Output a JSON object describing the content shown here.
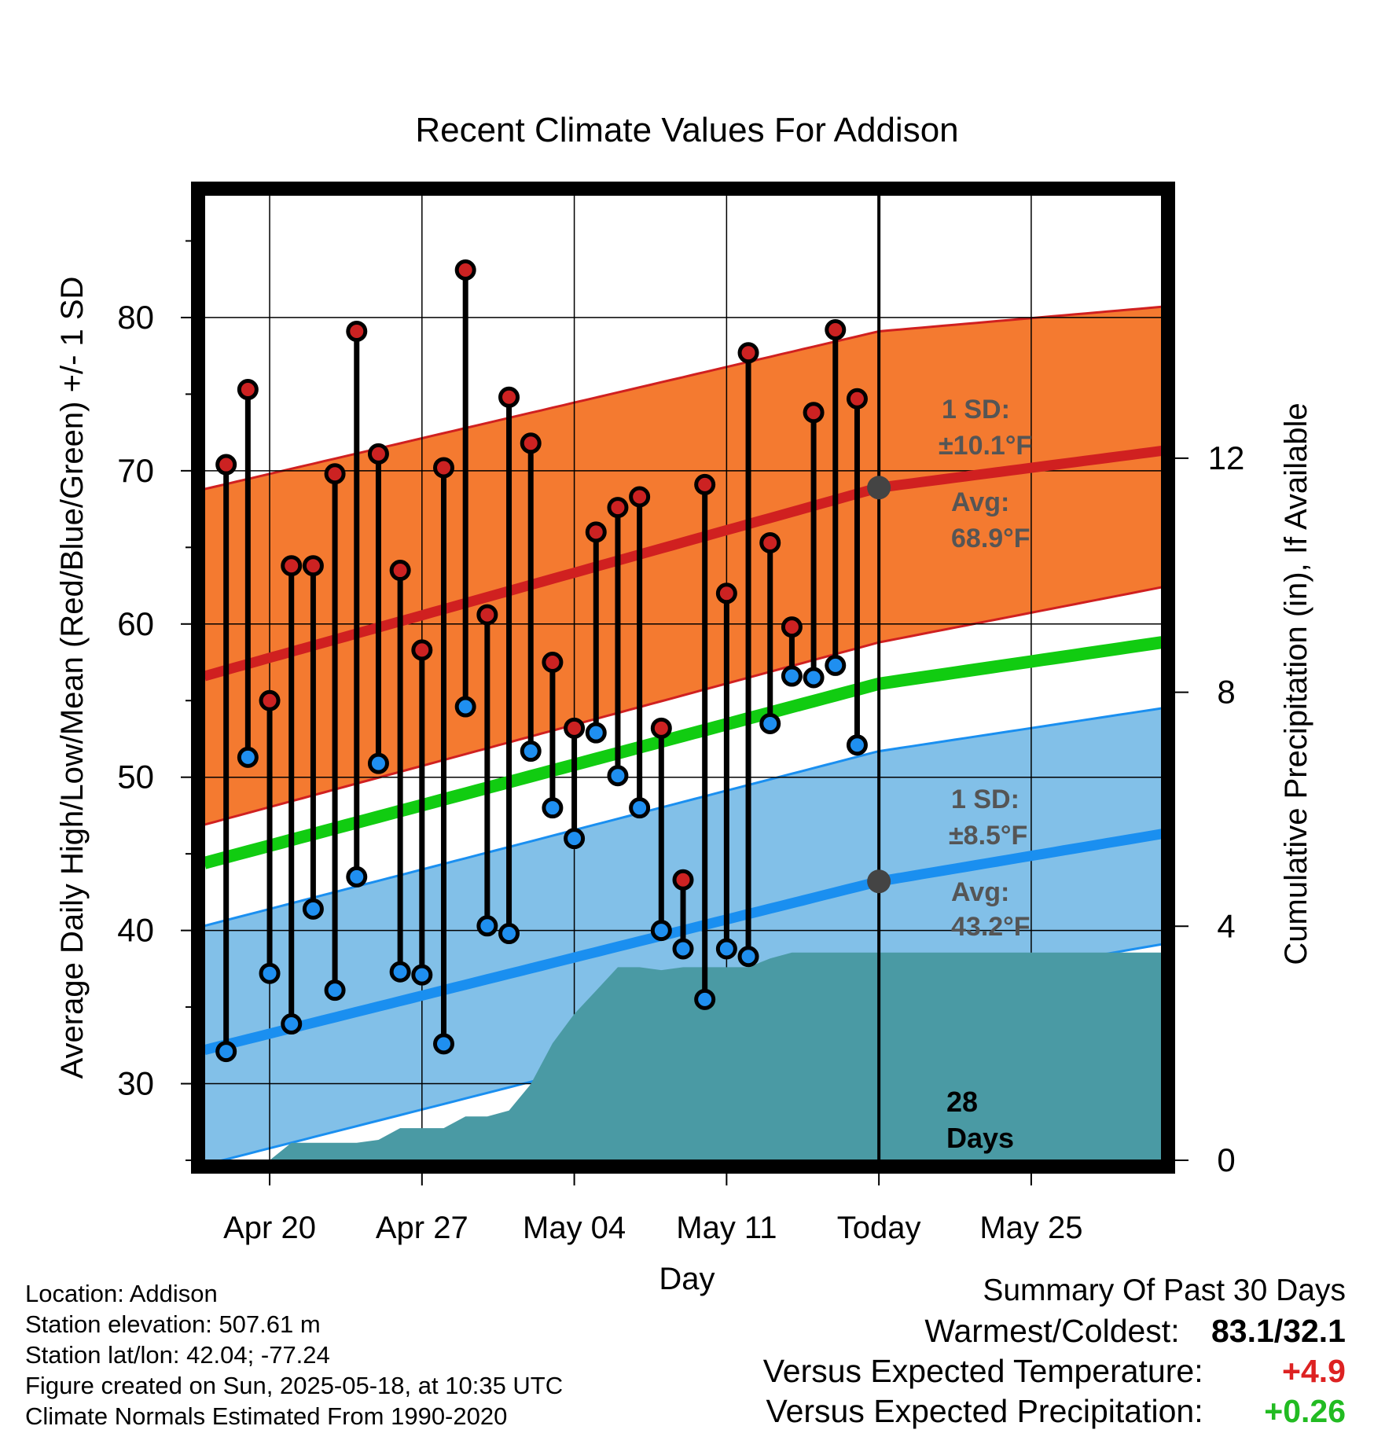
{
  "chart_data": {
    "type": "line",
    "title": "Recent Climate Values For Addison",
    "xlabel": "Day",
    "ylabel": "Average Daily High/Low/Mean (Red/Blue/Green) +/- 1 SD",
    "y2label": "Cumulative Precipitation (in), If Available",
    "ylim": [
      25,
      88
    ],
    "y_ticks": [
      "30",
      "40",
      "50",
      "60",
      "70",
      "80"
    ],
    "y2lim": [
      0,
      16.5
    ],
    "y2_ticks": [
      "0",
      "4",
      "8",
      "12"
    ],
    "x_start": "2025-04-17",
    "x_end": "2025-05-31",
    "x_ticks": [
      {
        "date": "2025-04-20",
        "label": "Apr 20"
      },
      {
        "date": "2025-04-27",
        "label": "Apr 27"
      },
      {
        "date": "2025-05-04",
        "label": "May 04"
      },
      {
        "date": "2025-05-11",
        "label": "May 11"
      },
      {
        "date": "2025-05-18",
        "label": "Today"
      },
      {
        "date": "2025-05-25",
        "label": "May 25"
      }
    ],
    "today": "2025-05-18",
    "grid": true,
    "colors": {
      "high_band": "#f47a30",
      "high_line": "#d02020",
      "low_band": "#82c0e8",
      "low_line": "#1a8ff0",
      "mean_line": "#11cc11",
      "precip_fill": "#4a9aa4",
      "high_point": "#cc2222",
      "low_point": "#1f8ff0",
      "annotation": "#555555"
    },
    "normal_high": {
      "dates": [
        "2025-04-17",
        "2025-05-18",
        "2025-05-31"
      ],
      "mean": [
        56.6,
        68.9,
        71.3
      ],
      "upper": [
        68.8,
        79.1,
        80.7
      ],
      "lower": [
        46.9,
        58.8,
        62.4
      ]
    },
    "normal_low": {
      "dates": [
        "2025-04-17",
        "2025-05-18",
        "2025-05-31"
      ],
      "mean": [
        32.2,
        43.2,
        46.3
      ],
      "upper": [
        40.3,
        51.7,
        54.5
      ],
      "lower": [
        24.7,
        35.9,
        39.1
      ]
    },
    "normal_mean": {
      "dates": [
        "2025-04-17",
        "2025-05-18",
        "2025-05-31"
      ],
      "values": [
        44.4,
        56.1,
        58.8
      ]
    },
    "daily": {
      "dates": [
        "2025-04-18",
        "2025-04-19",
        "2025-04-20",
        "2025-04-21",
        "2025-04-22",
        "2025-04-23",
        "2025-04-24",
        "2025-04-25",
        "2025-04-26",
        "2025-04-27",
        "2025-04-28",
        "2025-04-29",
        "2025-04-30",
        "2025-05-01",
        "2025-05-02",
        "2025-05-03",
        "2025-05-04",
        "2025-05-05",
        "2025-05-06",
        "2025-05-07",
        "2025-05-08",
        "2025-05-09",
        "2025-05-10",
        "2025-05-11",
        "2025-05-12",
        "2025-05-13",
        "2025-05-14",
        "2025-05-15",
        "2025-05-16",
        "2025-05-17"
      ],
      "high": [
        70.4,
        75.3,
        55.0,
        63.8,
        63.8,
        69.8,
        79.1,
        71.1,
        63.5,
        58.3,
        70.2,
        83.1,
        60.6,
        74.8,
        71.8,
        57.5,
        53.2,
        66.0,
        67.6,
        68.3,
        53.2,
        43.3,
        69.1,
        62.0,
        77.7,
        65.3,
        59.8,
        73.8,
        79.2,
        74.7
      ],
      "low": [
        32.1,
        51.3,
        37.2,
        33.9,
        41.4,
        36.1,
        43.5,
        50.9,
        37.3,
        37.1,
        32.6,
        54.6,
        40.3,
        39.8,
        51.7,
        48.0,
        46.0,
        52.9,
        50.1,
        48.0,
        40.0,
        38.8,
        35.5,
        38.8,
        38.3,
        53.5,
        56.6,
        56.5,
        57.3,
        52.1
      ]
    },
    "precip": {
      "dates": [
        "2025-04-17",
        "2025-04-20",
        "2025-04-21",
        "2025-04-23",
        "2025-04-24",
        "2025-04-25",
        "2025-04-26",
        "2025-04-27",
        "2025-04-28",
        "2025-04-29",
        "2025-04-30",
        "2025-05-01",
        "2025-05-02",
        "2025-05-03",
        "2025-05-04",
        "2025-05-05",
        "2025-05-06",
        "2025-05-07",
        "2025-05-08",
        "2025-05-09",
        "2025-05-10",
        "2025-05-11",
        "2025-05-12",
        "2025-05-13",
        "2025-05-14",
        "2025-05-18",
        "2025-05-31"
      ],
      "values": [
        0.0,
        0.0,
        0.3,
        0.3,
        0.3,
        0.35,
        0.55,
        0.55,
        0.55,
        0.75,
        0.75,
        0.85,
        1.3,
        2.0,
        2.5,
        2.9,
        3.3,
        3.3,
        3.25,
        3.3,
        3.3,
        3.3,
        3.3,
        3.45,
        3.55,
        3.55,
        3.55
      ]
    },
    "annotations": {
      "high_sd": [
        "1 SD:",
        "±10.1°F"
      ],
      "high_avg": [
        "Avg:",
        "68.9°F"
      ],
      "low_sd": [
        "1 SD:",
        "±8.5°F"
      ],
      "low_avg": [
        "Avg:",
        "43.2°F"
      ],
      "days": [
        "28",
        "Days"
      ]
    }
  },
  "footer": {
    "meta": [
      "Location: Addison",
      "Station elevation: 507.61 m",
      "Station lat/lon: 42.04; -77.24",
      "Figure created on Sun, 2025-05-18, at 10:35 UTC",
      "Climate Normals Estimated From 1990-2020"
    ],
    "summary_title": "Summary Of Past 30 Days",
    "warmest_coldest_label": "Warmest/Coldest:",
    "warmest_coldest_value": "83.1/32.1",
    "temp_label": "Versus Expected Temperature:",
    "temp_value": "+4.9",
    "temp_color": "#dd2222",
    "precip_label": "Versus Expected Precipitation:",
    "precip_value": "+0.26",
    "precip_color": "#22bb22"
  }
}
